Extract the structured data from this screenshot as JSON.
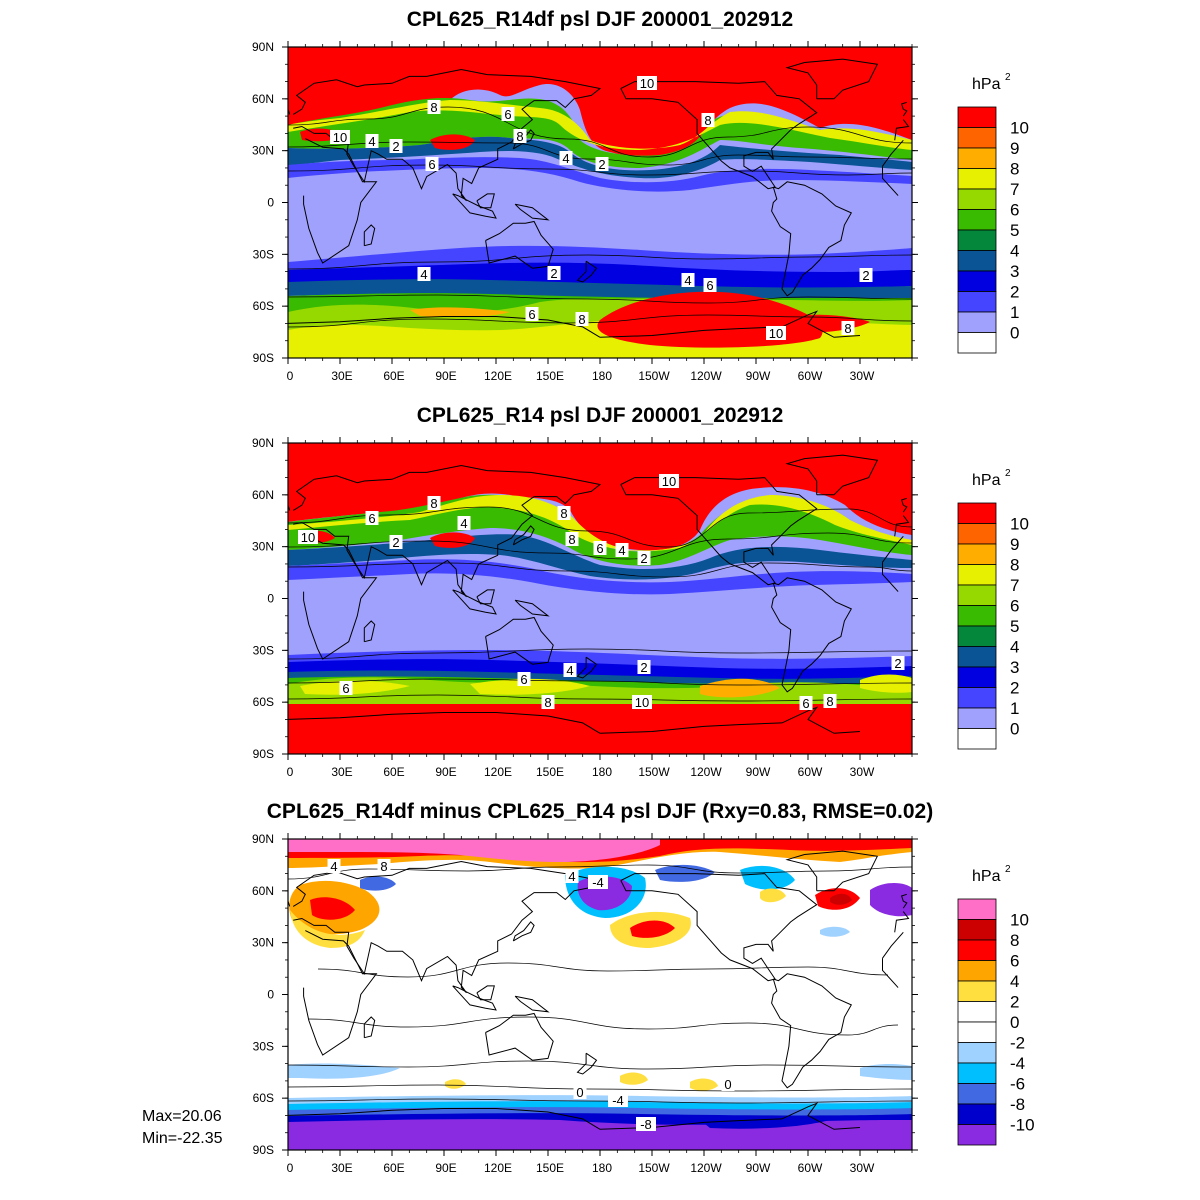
{
  "panels": [
    {
      "title": "CPL625_R14df psl DJF 200001_202912",
      "colorbar": {
        "unit": "hPa",
        "unit_sup": "2",
        "labels": [
          "10",
          "9",
          "8",
          "7",
          "6",
          "5",
          "4",
          "3",
          "2",
          "1",
          "0"
        ],
        "colors": [
          "#fe0000",
          "#fe6400",
          "#ffae00",
          "#e6f000",
          "#95d900",
          "#38bb00",
          "#05873b",
          "#0a5496",
          "#0000e1",
          "#4545ff",
          "#a0a0fd",
          "#ffffff"
        ]
      },
      "contour_labels": [
        "10",
        "8",
        "6",
        "4",
        "2"
      ]
    },
    {
      "title": "CPL625_R14 psl DJF 200001_202912",
      "colorbar": {
        "unit": "hPa",
        "unit_sup": "2",
        "labels": [
          "10",
          "9",
          "8",
          "7",
          "6",
          "5",
          "4",
          "3",
          "2",
          "1",
          "0"
        ],
        "colors": [
          "#fe0000",
          "#fe6400",
          "#ffae00",
          "#e6f000",
          "#95d900",
          "#38bb00",
          "#05873b",
          "#0a5496",
          "#0000e1",
          "#4545ff",
          "#a0a0fd",
          "#ffffff"
        ]
      },
      "contour_labels": [
        "10",
        "8",
        "6",
        "4",
        "2"
      ]
    },
    {
      "title": "CPL625_R14df minus CPL625_R14 psl DJF (Rxy=0.83, RMSE=0.02)",
      "colorbar": {
        "unit": "hPa",
        "unit_sup": "2",
        "labels": [
          "10",
          "8",
          "6",
          "4",
          "2",
          "0",
          "-2",
          "-4",
          "-6",
          "-8",
          "-10"
        ],
        "colors": [
          "#ff6ec7",
          "#cc0000",
          "#ff0000",
          "#ffa500",
          "#ffdf40",
          "#ffffff",
          "#ffffff",
          "#a0d2ff",
          "#00bfff",
          "#4169e1",
          "#0000cd",
          "#8a2be2"
        ]
      },
      "contour_labels": [
        "4",
        "8",
        "0",
        "-4",
        "-8"
      ]
    }
  ],
  "axes": {
    "lat_labels": [
      "90N",
      "60N",
      "30N",
      "0",
      "30S",
      "60S",
      "90S"
    ],
    "lon_labels": [
      "0",
      "30E",
      "60E",
      "90E",
      "120E",
      "150E",
      "180",
      "150W",
      "120W",
      "90W",
      "60W",
      "30W"
    ]
  },
  "stats": {
    "max": "Max=20.06",
    "min": "Min=-22.35"
  }
}
